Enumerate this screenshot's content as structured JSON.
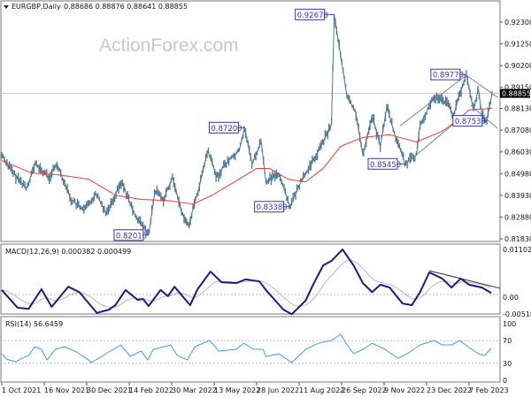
{
  "header": {
    "symbol": "EURGBP,Daily",
    "ohlc": "0.88686 0.88876 0.88641 0.88855",
    "menu_icon": "triangle-down-icon"
  },
  "watermark": "ActionForex.com",
  "colors": {
    "price": "#4e7891",
    "ma": "#f03a3a",
    "macd": "#1a1a8c",
    "signal": "#b8b8b8",
    "rsi": "#3d9cf0",
    "label": "#3434b8",
    "channel": "#7a8a80"
  },
  "chart_data": [
    {
      "type": "line",
      "title": "EURGBP,Daily",
      "price_axis_ticks": [
        "0.92300",
        "0.91250",
        "0.90200",
        "0.89150",
        "0.88130",
        "0.87080",
        "0.86030",
        "0.84980",
        "0.83930",
        "0.82880",
        "0.81830"
      ],
      "ylim": [
        0.8183,
        0.923
      ],
      "x_ticks": [
        "1 Oct 2021",
        "16 Nov 2021",
        "30 Dec 2021",
        "14 Feb 2022",
        "30 Mar 2022",
        "13 May 2022",
        "28 Jun 2022",
        "11 Aug 2022",
        "26 Sep 2022",
        "9 Nov 2022",
        "23 Dec 2022",
        "7 Feb 2023"
      ],
      "current_price": "0.88855",
      "price": [
        [
          "2021-10-01",
          0.8587
        ],
        [
          "2021-10-13",
          0.8501
        ],
        [
          "2021-10-28",
          0.8428
        ],
        [
          "2021-11-06",
          0.8544
        ],
        [
          "2021-11-21",
          0.848
        ],
        [
          "2021-11-30",
          0.8544
        ],
        [
          "2021-12-15",
          0.8373
        ],
        [
          "2021-12-29",
          0.8317
        ],
        [
          "2022-01-11",
          0.8403
        ],
        [
          "2022-01-22",
          0.8308
        ],
        [
          "2022-02-08",
          0.8459
        ],
        [
          "2022-02-20",
          0.8317
        ],
        [
          "2022-03-09",
          0.8201
        ],
        [
          "2022-03-16",
          0.8416
        ],
        [
          "2022-03-25",
          0.8373
        ],
        [
          "2022-04-04",
          0.848
        ],
        [
          "2022-04-14",
          0.8308
        ],
        [
          "2022-04-21",
          0.8244
        ],
        [
          "2022-05-03",
          0.8437
        ],
        [
          "2022-05-12",
          0.8608
        ],
        [
          "2022-05-22",
          0.848
        ],
        [
          "2022-05-31",
          0.8544
        ],
        [
          "2022-06-15",
          0.8608
        ],
        [
          "2022-06-21",
          0.872
        ],
        [
          "2022-06-29",
          0.8544
        ],
        [
          "2022-07-09",
          0.8651
        ],
        [
          "2022-07-14",
          0.8459
        ],
        [
          "2022-07-28",
          0.8501
        ],
        [
          "2022-08-09",
          0.8338
        ],
        [
          "2022-08-21",
          0.8459
        ],
        [
          "2022-09-04",
          0.8566
        ],
        [
          "2022-09-14",
          0.8651
        ],
        [
          "2022-09-23",
          0.8737
        ],
        [
          "2022-09-26",
          0.9267
        ],
        [
          "2022-10-10",
          0.8866
        ],
        [
          "2022-10-19",
          0.8801
        ],
        [
          "2022-10-27",
          0.8587
        ],
        [
          "2022-11-06",
          0.878
        ],
        [
          "2022-11-15",
          0.863
        ],
        [
          "2022-11-22",
          0.8823
        ],
        [
          "2022-11-30",
          0.8694
        ],
        [
          "2022-12-12",
          0.8545
        ],
        [
          "2022-12-24",
          0.8587
        ],
        [
          "2022-12-28",
          0.8737
        ],
        [
          "2023-01-12",
          0.8866
        ],
        [
          "2023-01-26",
          0.8844
        ],
        [
          "2023-02-02",
          0.878
        ],
        [
          "2023-02-16",
          0.8977
        ],
        [
          "2023-02-24",
          0.8801
        ],
        [
          "2023-03-01",
          0.8909
        ],
        [
          "2023-03-05",
          0.878
        ],
        [
          "2023-03-10",
          0.8753
        ],
        [
          "2023-03-16",
          0.88855
        ]
      ],
      "moving_average": [
        [
          "2021-10-01",
          0.8561
        ],
        [
          "2021-11-02",
          0.8501
        ],
        [
          "2021-11-30",
          0.8493
        ],
        [
          "2022-01-03",
          0.8471
        ],
        [
          "2022-02-01",
          0.8394
        ],
        [
          "2022-03-01",
          0.8373
        ],
        [
          "2022-03-30",
          0.8368
        ],
        [
          "2022-04-26",
          0.8351
        ],
        [
          "2022-05-17",
          0.8394
        ],
        [
          "2022-06-10",
          0.8458
        ],
        [
          "2022-07-04",
          0.8523
        ],
        [
          "2022-07-18",
          0.8523
        ],
        [
          "2022-08-07",
          0.8471
        ],
        [
          "2022-08-26",
          0.8458
        ],
        [
          "2022-09-14",
          0.8523
        ],
        [
          "2022-10-03",
          0.863
        ],
        [
          "2022-10-27",
          0.8673
        ],
        [
          "2022-11-25",
          0.8686
        ],
        [
          "2022-12-24",
          0.8651
        ],
        [
          "2023-01-21",
          0.8703
        ],
        [
          "2023-02-05",
          0.875
        ],
        [
          "2023-02-19",
          0.8806
        ],
        [
          "2023-03-16",
          0.8814
        ]
      ],
      "annotations": [
        {
          "text": "0.92670",
          "date": "2022-09-26",
          "price": 0.9267
        },
        {
          "text": "0.89770",
          "date": "2023-02-16",
          "price": 0.8977
        },
        {
          "text": "0.87200",
          "date": "2022-06-21",
          "price": 0.872
        },
        {
          "text": "0.87530",
          "date": "2023-03-10",
          "price": 0.8753
        },
        {
          "text": "0.85450",
          "date": "2022-12-12",
          "price": 0.8545
        },
        {
          "text": "0.83380",
          "date": "2022-08-09",
          "price": 0.8338
        },
        {
          "text": "0.82010",
          "date": "2022-03-09",
          "price": 0.8201
        }
      ],
      "trendlines": [
        [
          [
            "2022-12-06",
            0.8728
          ],
          [
            "2023-02-16",
            0.8973
          ]
        ],
        [
          [
            "2022-12-12",
            0.8544
          ],
          [
            "2023-02-02",
            0.8737
          ]
        ],
        [
          [
            "2023-02-16",
            0.8973
          ],
          [
            "2023-03-22",
            0.8866
          ]
        ],
        [
          [
            "2023-02-21",
            0.8827
          ],
          [
            "2023-03-22",
            0.8716
          ]
        ]
      ]
    },
    {
      "type": "line",
      "label": "MACD(12,26,9) 0.000382 0.000499",
      "axis_ticks": [
        "0.011023",
        "0.00",
        "-0.005182"
      ],
      "ylim": [
        -0.005182,
        0.011023
      ],
      "macd": [
        [
          "2021-10-01",
          0.0011
        ],
        [
          "2021-10-18",
          -0.0032
        ],
        [
          "2021-10-30",
          -0.0035
        ],
        [
          "2021-11-13",
          0.0013
        ],
        [
          "2021-11-24",
          -0.003
        ],
        [
          "2021-12-12",
          0.0019
        ],
        [
          "2021-12-24",
          0.0006
        ],
        [
          "2022-01-12",
          -0.0045
        ],
        [
          "2022-01-25",
          -0.0037
        ],
        [
          "2022-02-01",
          -0.0026
        ],
        [
          "2022-02-12",
          0.0011
        ],
        [
          "2022-02-25",
          -0.0013
        ],
        [
          "2022-03-03",
          -0.0011
        ],
        [
          "2022-03-09",
          -0.0028
        ],
        [
          "2022-03-22",
          0.0011
        ],
        [
          "2022-03-30",
          -0.0004
        ],
        [
          "2022-04-06",
          0.0019
        ],
        [
          "2022-04-23",
          -0.0026
        ],
        [
          "2022-05-01",
          0.0013
        ],
        [
          "2022-05-15",
          0.0056
        ],
        [
          "2022-05-27",
          0.003
        ],
        [
          "2022-06-12",
          0.0028
        ],
        [
          "2022-06-22",
          0.0037
        ],
        [
          "2022-07-07",
          0.0032
        ],
        [
          "2022-07-14",
          0.0011
        ],
        [
          "2022-08-02",
          -0.0037
        ],
        [
          "2022-08-11",
          -0.0048
        ],
        [
          "2022-08-26",
          -0.0015
        ],
        [
          "2022-09-04",
          0.0028
        ],
        [
          "2022-09-14",
          0.0071
        ],
        [
          "2022-09-23",
          0.0082
        ],
        [
          "2022-10-05",
          0.011
        ],
        [
          "2022-10-17",
          0.0071
        ],
        [
          "2022-10-27",
          0.0028
        ],
        [
          "2022-11-06",
          0.0006
        ],
        [
          "2022-11-15",
          0.0024
        ],
        [
          "2022-11-25",
          0.0017
        ],
        [
          "2022-12-09",
          -0.0022
        ],
        [
          "2022-12-19",
          -0.0026
        ],
        [
          "2022-12-28",
          0.0006
        ],
        [
          "2023-01-07",
          0.0054
        ],
        [
          "2023-01-21",
          0.0039
        ],
        [
          "2023-01-31",
          0.0017
        ],
        [
          "2023-02-10",
          0.0039
        ],
        [
          "2023-02-19",
          0.0024
        ],
        [
          "2023-03-05",
          0.0017
        ],
        [
          "2023-03-15",
          0.000382
        ]
      ],
      "trendline": [
        [
          "2023-01-07",
          0.0058
        ],
        [
          "2023-03-25",
          0.0015
        ]
      ]
    },
    {
      "type": "line",
      "label": "RSI(14) 56.6459",
      "axis_ticks": [
        "100",
        "70",
        "30",
        "0"
      ],
      "ylim": [
        0,
        100
      ],
      "levels": [
        70,
        30
      ],
      "rsi": [
        [
          "2021-10-01",
          46.9
        ],
        [
          "2021-10-06",
          37.5
        ],
        [
          "2021-10-16",
          32.8
        ],
        [
          "2021-10-23",
          39
        ],
        [
          "2021-10-30",
          43.8
        ],
        [
          "2021-11-06",
          59.4
        ],
        [
          "2021-11-13",
          54.7
        ],
        [
          "2021-11-19",
          35.9
        ],
        [
          "2021-11-28",
          54.7
        ],
        [
          "2021-12-08",
          59.4
        ],
        [
          "2021-12-21",
          50
        ],
        [
          "2022-01-03",
          35.9
        ],
        [
          "2022-01-06",
          31.3
        ],
        [
          "2022-01-25",
          50
        ],
        [
          "2022-02-07",
          62.5
        ],
        [
          "2022-02-17",
          42.2
        ],
        [
          "2022-03-01",
          51.6
        ],
        [
          "2022-03-08",
          35.9
        ],
        [
          "2022-03-14",
          54.7
        ],
        [
          "2022-04-02",
          62.5
        ],
        [
          "2022-04-09",
          43.8
        ],
        [
          "2022-04-20",
          35.9
        ],
        [
          "2022-04-28",
          59.4
        ],
        [
          "2022-05-14",
          70.3
        ],
        [
          "2022-05-24",
          51.6
        ],
        [
          "2022-06-12",
          54.7
        ],
        [
          "2022-06-20",
          65.6
        ],
        [
          "2022-07-01",
          54.7
        ],
        [
          "2022-07-11",
          54.7
        ],
        [
          "2022-07-14",
          42.2
        ],
        [
          "2022-07-28",
          46.9
        ],
        [
          "2022-08-11",
          31.3
        ],
        [
          "2022-08-26",
          54.7
        ],
        [
          "2022-09-09",
          65.6
        ],
        [
          "2022-09-23",
          70.3
        ],
        [
          "2022-10-03",
          81.3
        ],
        [
          "2022-10-10",
          62.5
        ],
        [
          "2022-10-17",
          46.9
        ],
        [
          "2022-10-27",
          54.7
        ],
        [
          "2022-11-06",
          65.6
        ],
        [
          "2022-11-20",
          54.7
        ],
        [
          "2022-12-04",
          39.1
        ],
        [
          "2022-12-14",
          46.9
        ],
        [
          "2022-12-28",
          62.5
        ],
        [
          "2023-01-12",
          70.3
        ],
        [
          "2023-01-21",
          62.5
        ],
        [
          "2023-01-31",
          62.5
        ],
        [
          "2023-02-09",
          70.3
        ],
        [
          "2023-02-19",
          57.8
        ],
        [
          "2023-03-01",
          46.9
        ],
        [
          "2023-03-08",
          43.8
        ],
        [
          "2023-03-15",
          56.6459
        ]
      ]
    }
  ]
}
